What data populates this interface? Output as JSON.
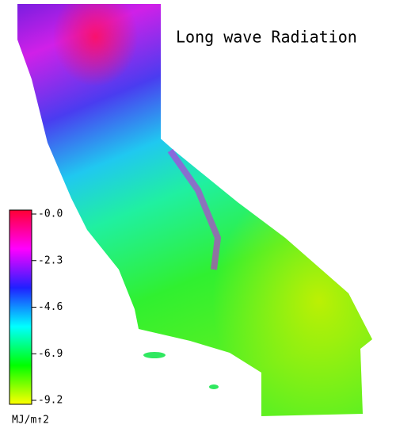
{
  "title": "Long wave Radiation",
  "colorbar": {
    "label": "MJ/m↑2",
    "lim": [
      0,
      -9.2
    ],
    "ticks": [
      {
        "value": 0,
        "label": "-0.0"
      },
      -2.3,
      -4.6,
      -6.9,
      -9.2
    ],
    "colors": [
      "#ff0033",
      "#ff00ff",
      "#2020ff",
      "#00ffff",
      "#00ff00",
      "#ffff00"
    ]
  }
}
